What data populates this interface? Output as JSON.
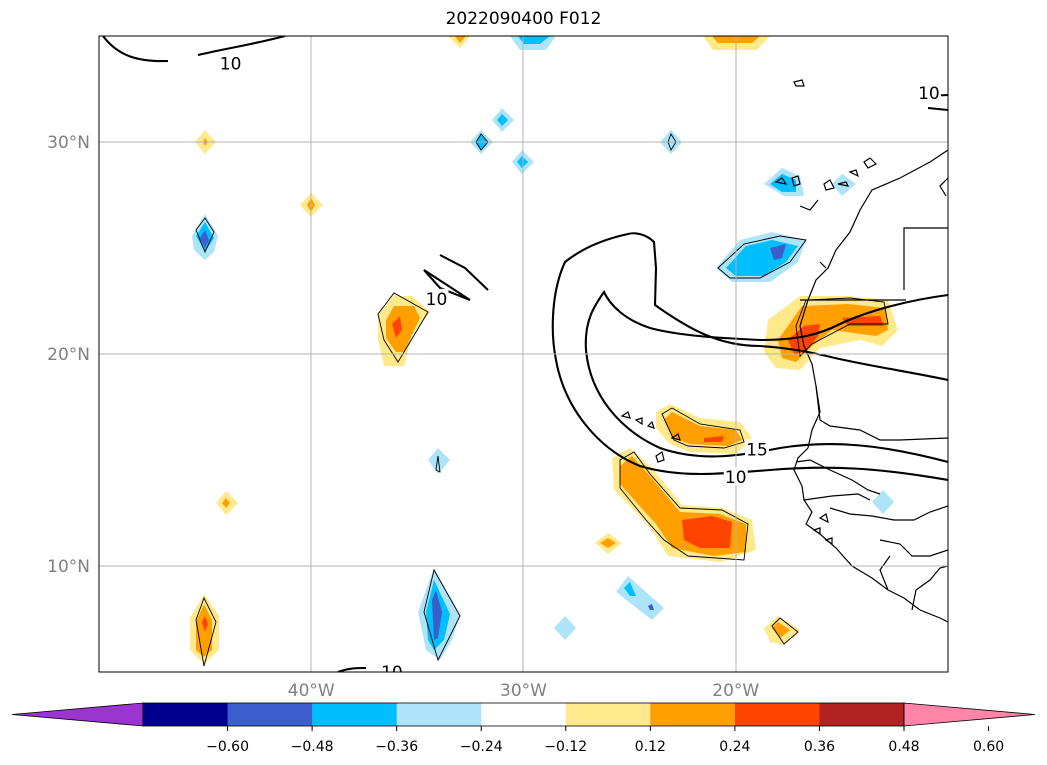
{
  "title": "2022090400 F012",
  "chart_data": {
    "type": "map",
    "title": "2022090400 F012",
    "lon_range": [
      -50,
      -10
    ],
    "lat_range": [
      5,
      35
    ],
    "gridlines": true,
    "lon_ticks": [
      {
        "value": -40,
        "label": "40°W"
      },
      {
        "value": -30,
        "label": "30°W"
      },
      {
        "value": -20,
        "label": "20°W"
      }
    ],
    "lat_ticks": [
      {
        "value": 30,
        "label": "30°N"
      },
      {
        "value": 20,
        "label": "20°N"
      },
      {
        "value": 10,
        "label": "10°N"
      }
    ],
    "colorbar": {
      "orientation": "horizontal",
      "extend": "both",
      "levels": [
        -0.72,
        -0.6,
        -0.48,
        -0.36,
        -0.24,
        -0.12,
        0.12,
        0.24,
        0.36,
        0.48,
        0.6,
        0.72
      ],
      "colors": [
        "#9a35d0",
        "#00008e",
        "#3a5fcd",
        "#00bfff",
        "#aee4fa",
        "#ffffff",
        "#ffe98a",
        "#ffa000",
        "#ff4300",
        "#b22222",
        "#ff85a8"
      ],
      "tick_labels": [
        "−0.60",
        "−0.48",
        "−0.36",
        "−0.24",
        "−0.12",
        "0.12",
        "0.24",
        "0.36",
        "0.48",
        "0.60"
      ]
    },
    "contour_labels": [
      {
        "text": "10",
        "lon": -43.8,
        "lat": 33.7
      },
      {
        "text": "10",
        "lon": -10.9,
        "lat": 32.3
      },
      {
        "text": "10",
        "lon": -34.1,
        "lat": 22.6
      },
      {
        "text": "15",
        "lon": -19.0,
        "lat": 15.5
      },
      {
        "text": "10",
        "lon": -20.0,
        "lat": 14.2
      },
      {
        "text": "10",
        "lon": -36.2,
        "lat": 5.0
      }
    ]
  }
}
